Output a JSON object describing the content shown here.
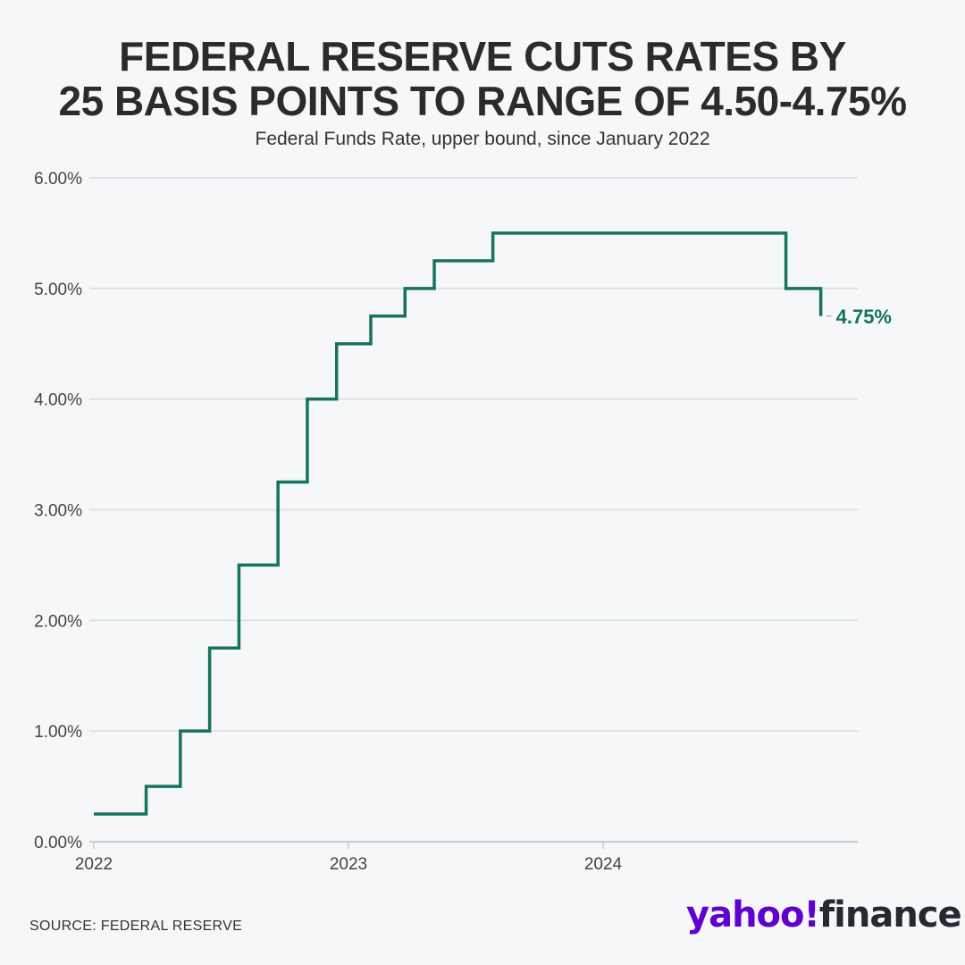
{
  "title_line1": "FEDERAL RESERVE CUTS RATES BY",
  "title_line2": "25 BASIS POINTS TO RANGE OF 4.50-4.75%",
  "subtitle": "Federal Funds Rate, upper bound, since January 2022",
  "source": "SOURCE: FEDERAL RESERVE",
  "logo": {
    "brand": "yahoo!",
    "product": "finance"
  },
  "chart_data": {
    "type": "line",
    "step": true,
    "title": "FEDERAL RESERVE CUTS RATES BY 25 BASIS POINTS TO RANGE OF 4.50-4.75%",
    "subtitle": "Federal Funds Rate, upper bound, since January 2022",
    "xlabel": "",
    "ylabel": "",
    "xlim": [
      "2022-01-01",
      "2024-12-31"
    ],
    "ylim": [
      0,
      6
    ],
    "y_ticks": [
      "0.00%",
      "1.00%",
      "2.00%",
      "3.00%",
      "4.00%",
      "5.00%",
      "6.00%"
    ],
    "x_ticks": [
      "2022",
      "2023",
      "2024"
    ],
    "grid": true,
    "color": "#16735f",
    "points": [
      {
        "date": "2022-01-01",
        "value": 0.25
      },
      {
        "date": "2022-03-17",
        "value": 0.5
      },
      {
        "date": "2022-05-05",
        "value": 1.0
      },
      {
        "date": "2022-06-16",
        "value": 1.75
      },
      {
        "date": "2022-07-28",
        "value": 2.5
      },
      {
        "date": "2022-09-22",
        "value": 3.25
      },
      {
        "date": "2022-11-03",
        "value": 4.0
      },
      {
        "date": "2022-12-15",
        "value": 4.5
      },
      {
        "date": "2023-02-02",
        "value": 4.75
      },
      {
        "date": "2023-03-23",
        "value": 5.0
      },
      {
        "date": "2023-05-04",
        "value": 5.25
      },
      {
        "date": "2023-07-27",
        "value": 5.5
      },
      {
        "date": "2024-09-19",
        "value": 5.0
      },
      {
        "date": "2024-11-08",
        "value": 4.75
      }
    ],
    "end_label": "4.75%"
  }
}
